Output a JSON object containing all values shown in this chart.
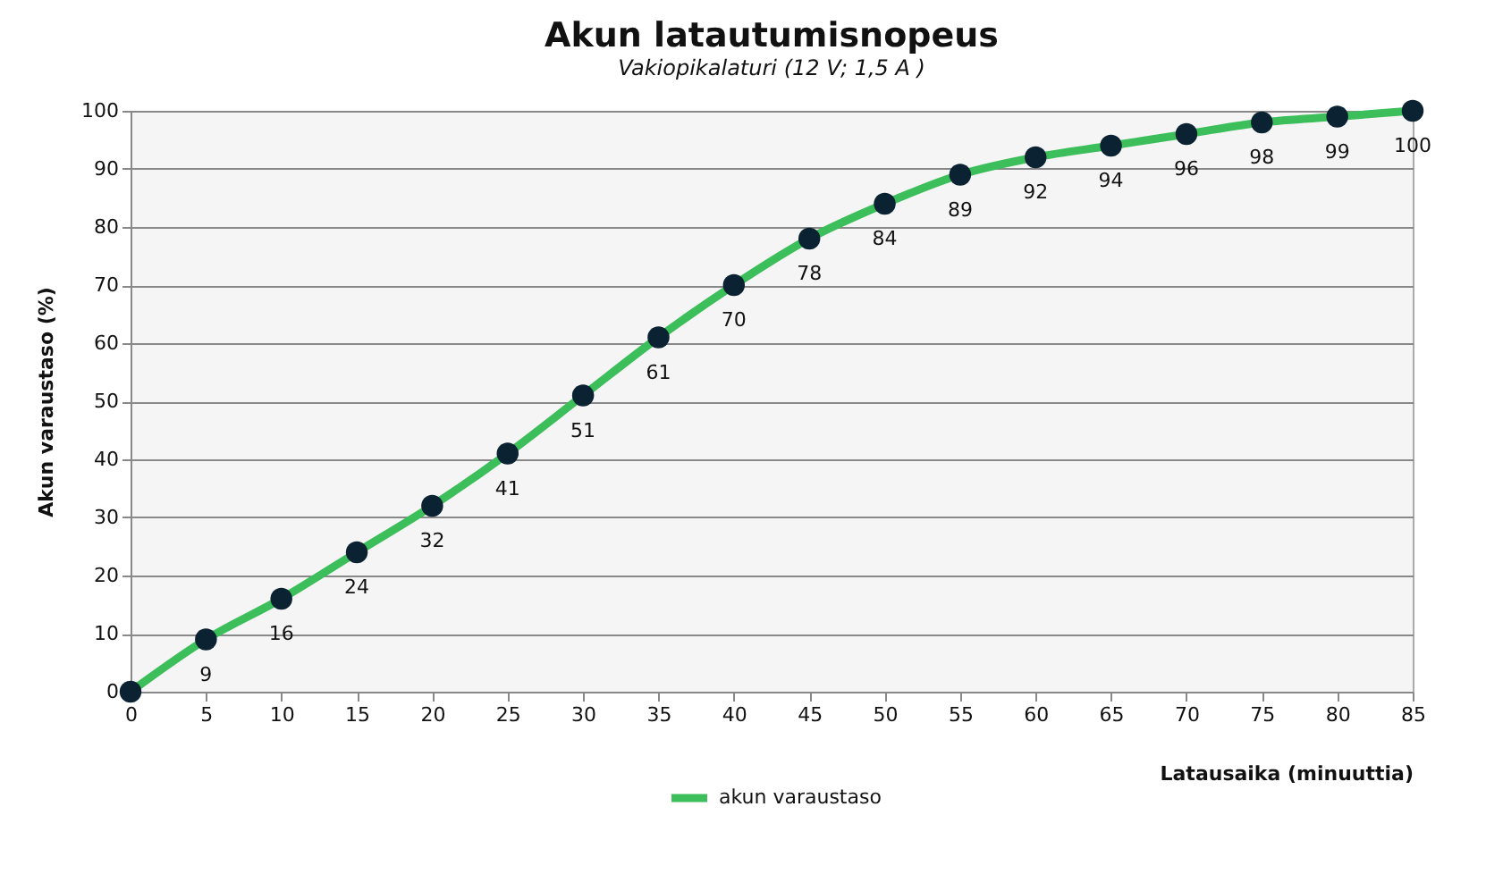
{
  "chart_data": {
    "type": "line",
    "title": "Akun latautumisnopeus",
    "subtitle": "Vakiopikalaturi  (12 V; 1,5 A )",
    "xlabel": "Latausaika  (minuuttia)",
    "ylabel": "Akun varaustaso  (%)",
    "x": [
      0,
      5,
      10,
      15,
      20,
      25,
      30,
      35,
      40,
      45,
      50,
      55,
      60,
      65,
      70,
      75,
      80,
      85
    ],
    "series": [
      {
        "name": "akun varaustaso",
        "color": "#3cbe5a",
        "values": [
          0,
          9,
          16,
          24,
          32,
          41,
          51,
          61,
          70,
          78,
          84,
          89,
          92,
          94,
          96,
          98,
          99,
          100
        ],
        "value_labels": [
          null,
          "9",
          "16",
          "24",
          "32",
          "41",
          "51",
          "61",
          "70",
          "78",
          "84",
          "89",
          "92",
          "94",
          "96",
          "98",
          "99",
          "100"
        ]
      }
    ],
    "xlim": [
      0,
      85
    ],
    "xticks": [
      0,
      5,
      10,
      15,
      20,
      25,
      30,
      35,
      40,
      45,
      50,
      55,
      60,
      65,
      70,
      75,
      80,
      85
    ],
    "ylim": [
      0,
      100
    ],
    "yticks": [
      0,
      10,
      20,
      30,
      40,
      50,
      60,
      70,
      80,
      90,
      100
    ],
    "grid": "y",
    "legend": "bottom",
    "marker": "circle",
    "line_style": "solid"
  }
}
